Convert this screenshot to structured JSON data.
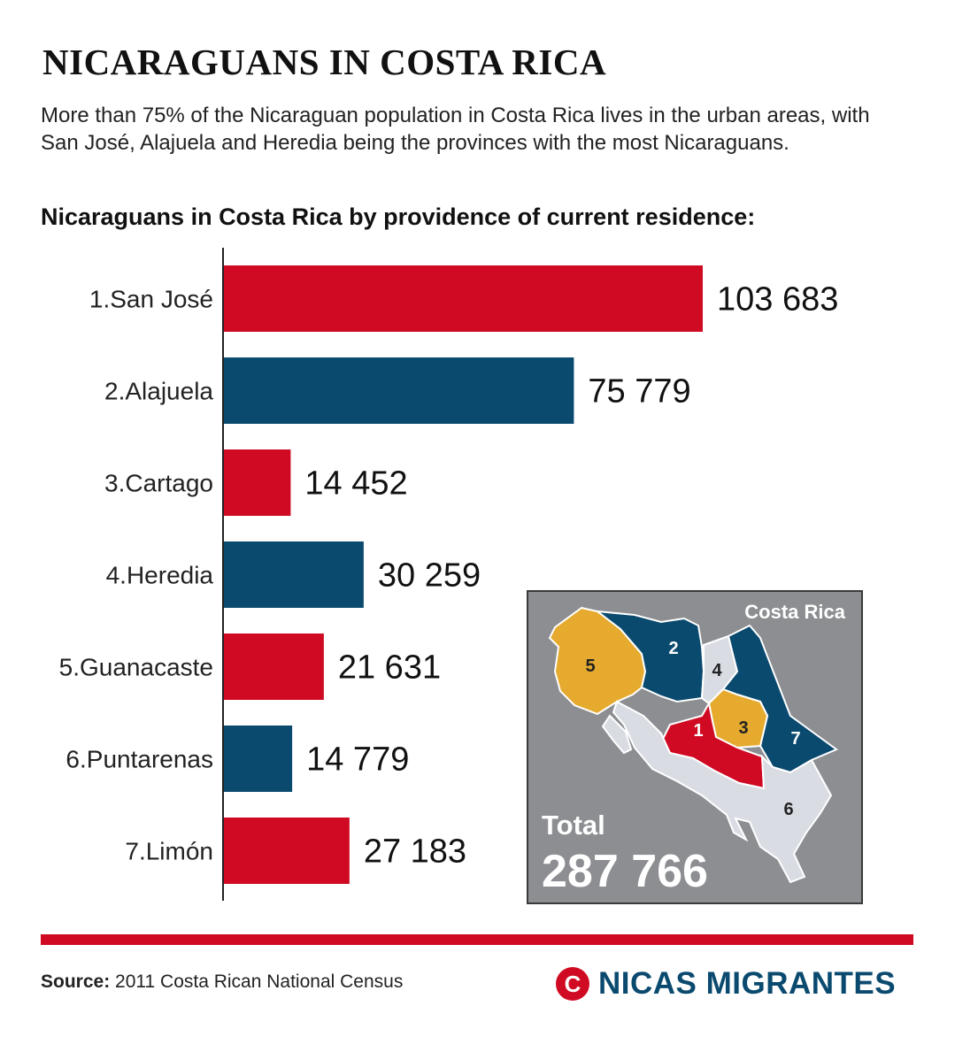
{
  "header": {
    "title": "NICARAGUANS IN COSTA RICA",
    "intro": "More than 75% of the Nicaraguan population in Costa Rica lives in the urban areas, with San José, Alajuela and Heredia being the provinces with the most Nicaraguans.",
    "subtitle": "Nicaraguans in Costa Rica by providence of current residence:"
  },
  "chart_data": {
    "type": "bar",
    "orientation": "horizontal",
    "categories": [
      "1.San José",
      "2.Alajuela",
      "3.Cartago",
      "4.Heredia",
      "5.Guanacaste",
      "6.Puntarenas",
      "7.Limón"
    ],
    "values": [
      103683,
      75779,
      14452,
      30259,
      21631,
      14779,
      27183
    ],
    "value_labels": [
      "103 683",
      "75 779",
      "14 452",
      "30 259",
      "21 631",
      "14 779",
      "27 183"
    ],
    "bar_colors": [
      "#cf0a22",
      "#0b4a6f",
      "#cf0a22",
      "#0b4a6f",
      "#cf0a22",
      "#0b4a6f",
      "#cf0a22"
    ],
    "xlim": [
      0,
      103683
    ],
    "grid": false,
    "legend": "none"
  },
  "map": {
    "title": "Costa Rica",
    "total_label": "Total",
    "total_value": "287 766",
    "region_numbers": [
      "1",
      "2",
      "3",
      "4",
      "5",
      "6",
      "7"
    ],
    "region_colors": {
      "1": "#cf0a22",
      "2": "#0b4a6f",
      "3": "#e5aa2e",
      "4": "#d9dde3",
      "5": "#e5aa2e",
      "6": "#d9dde3",
      "7": "#0b4a6f"
    },
    "background_color": "#8c8e91"
  },
  "footer": {
    "source_label": "Source:",
    "source_text": "2011 Costa Rican National Census",
    "brand_logo": "C",
    "brand_name": "NICAS MIGRANTES",
    "rule_color": "#cf0a22"
  }
}
